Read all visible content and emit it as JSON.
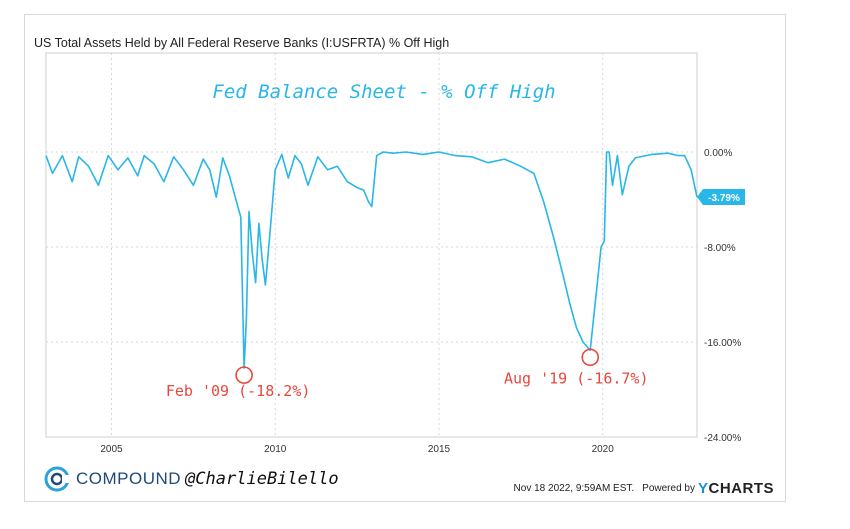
{
  "chart_data": {
    "type": "line",
    "title": "US Total Assets Held by All Federal Reserve Banks (I:USFRTA) % Off High",
    "overlay_title": "Fed Balance Sheet - % Off High",
    "xlabel": "",
    "ylabel": "",
    "xlim": [
      2003.0,
      2022.88
    ],
    "ylim": [
      -24.0,
      0.0
    ],
    "x_ticks": [
      2005,
      2010,
      2015,
      2020
    ],
    "x_tick_labels": [
      "2005",
      "2010",
      "2015",
      "2020"
    ],
    "y_ticks": [
      0,
      -8,
      -16,
      -24
    ],
    "y_tick_labels": [
      "0.00%",
      "-8.00%",
      "-16.00%",
      "-24.00%"
    ],
    "grid": "horizontal and vertical dotted",
    "series": [
      {
        "color": "#29b6e8",
        "x": [
          2003.0,
          2003.2,
          2003.5,
          2003.8,
          2004.0,
          2004.3,
          2004.6,
          2004.9,
          2005.2,
          2005.5,
          2005.8,
          2006.0,
          2006.3,
          2006.6,
          2006.9,
          2007.2,
          2007.5,
          2007.8,
          2008.0,
          2008.2,
          2008.4,
          2008.6,
          2008.8,
          2008.95,
          2009.05,
          2009.12,
          2009.2,
          2009.3,
          2009.4,
          2009.5,
          2009.6,
          2009.7,
          2009.85,
          2010.0,
          2010.2,
          2010.4,
          2010.6,
          2010.8,
          2011.0,
          2011.3,
          2011.6,
          2011.9,
          2012.2,
          2012.5,
          2012.7,
          2012.85,
          2012.95,
          2013.1,
          2013.3,
          2013.6,
          2014.0,
          2014.5,
          2015.0,
          2015.5,
          2016.0,
          2016.5,
          2017.0,
          2017.5,
          2017.9,
          2018.2,
          2018.5,
          2018.8,
          2019.0,
          2019.2,
          2019.4,
          2019.62,
          2019.8,
          2019.95,
          2020.05,
          2020.12,
          2020.2,
          2020.3,
          2020.45,
          2020.6,
          2020.8,
          2021.0,
          2021.5,
          2022.0,
          2022.3,
          2022.5,
          2022.7,
          2022.88
        ],
        "values": [
          -0.3,
          -1.8,
          -0.3,
          -2.5,
          -0.4,
          -1.2,
          -2.8,
          -0.3,
          -1.5,
          -0.5,
          -2.0,
          -0.3,
          -1.0,
          -2.5,
          -0.4,
          -1.5,
          -2.8,
          -0.6,
          -1.5,
          -3.8,
          -0.5,
          -2.0,
          -4.0,
          -5.5,
          -18.2,
          -14.0,
          -5.0,
          -8.5,
          -11.0,
          -6.0,
          -9.0,
          -11.2,
          -6.5,
          -1.5,
          -0.2,
          -2.2,
          -0.3,
          -1.0,
          -2.8,
          -0.4,
          -1.5,
          -1.2,
          -2.5,
          -3.0,
          -3.2,
          -4.2,
          -4.6,
          -0.3,
          0.0,
          -0.1,
          0.0,
          -0.2,
          0.0,
          -0.3,
          -0.4,
          -0.9,
          -0.6,
          -1.2,
          -1.8,
          -4.2,
          -7.2,
          -10.5,
          -12.8,
          -14.8,
          -16.0,
          -16.7,
          -12.0,
          -8.0,
          -7.5,
          0.0,
          0.0,
          -2.8,
          -0.3,
          -3.6,
          -1.2,
          -0.5,
          -0.2,
          -0.1,
          -0.3,
          -0.3,
          -1.5,
          -3.79
        ]
      }
    ],
    "last_value_label": "-3.79%",
    "annotations": [
      {
        "label": "Feb '09 (-18.2%)",
        "x": 2009.05,
        "y": -18.2
      },
      {
        "label": "Aug '19 (-16.7%)",
        "x": 2019.62,
        "y": -16.7
      }
    ]
  },
  "footer": {
    "brand_icon": "compound-logo-icon",
    "brand_name": "COMPOUND",
    "handle": "@CharlieBilello",
    "timestamp": "Nov 18 2022, 9:59AM EST.",
    "powered_by": "Powered by",
    "ycharts": "CHARTS",
    "ycharts_mark": "Y"
  }
}
